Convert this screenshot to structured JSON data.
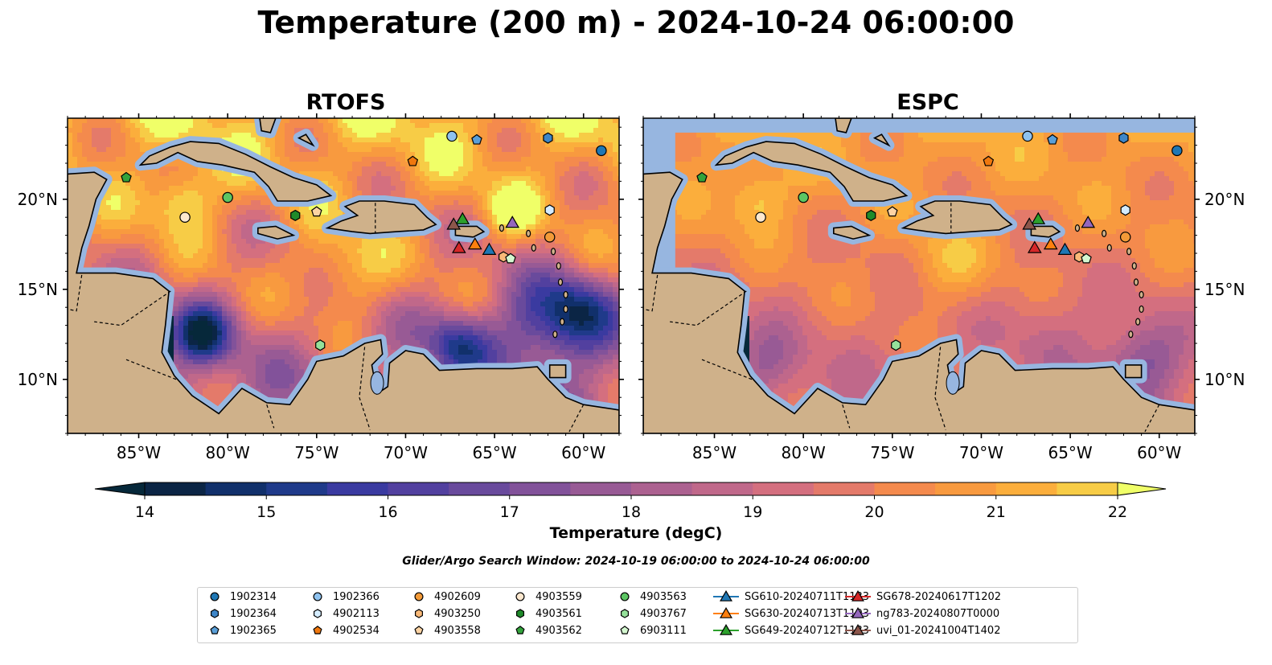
{
  "title": "Temperature (200 m) - 2024-10-24 06:00:00",
  "panels": [
    {
      "id": "rtofs",
      "title": "RTOFS"
    },
    {
      "id": "espc",
      "title": "ESPC"
    }
  ],
  "axes": {
    "lon_ticks": [
      -85,
      -80,
      -75,
      -70,
      -65,
      -60
    ],
    "lon_labels": [
      "85°W",
      "80°W",
      "75°W",
      "70°W",
      "65°W",
      "60°W"
    ],
    "lat_ticks": [
      10,
      15,
      20
    ],
    "lat_labels": [
      "10°N",
      "15°N",
      "20°N"
    ],
    "lon_range": [
      -89,
      -58
    ],
    "lat_range": [
      7,
      24.5
    ]
  },
  "colorbar": {
    "label": "Temperature (degC)",
    "min": 14,
    "max": 22,
    "step": 0.5,
    "tick_values": [
      14,
      15,
      16,
      17,
      18,
      19,
      20,
      21,
      22
    ],
    "tick_labels": [
      "14",
      "15",
      "16",
      "17",
      "18",
      "19",
      "20",
      "21",
      "22"
    ],
    "colors": [
      "#0b2545",
      "#11306b",
      "#1f3a8a",
      "#3a3aa0",
      "#52409f",
      "#694a9c",
      "#82529a",
      "#985a95",
      "#ac6190",
      "#c0688a",
      "#d46f7f",
      "#e47a6a",
      "#f48a4d",
      "#f89a3f",
      "#fbae3c",
      "#f7cc46",
      "#eceb5e"
    ],
    "under_color": "#06283a",
    "over_color": "#f0ff68"
  },
  "search_window": "Glider/Argo Search Window: 2024-10-19 06:00:00 to 2024-10-24 06:00:00",
  "colors": {
    "ocean_shelf": "#97b6e0",
    "land": "#cfb18a",
    "deep_blue": "#06283a"
  },
  "platforms": [
    {
      "id": "1902314",
      "marker": "circle",
      "color": "#1f77b4",
      "lon": -59,
      "lat": 22.7
    },
    {
      "id": "1902364",
      "marker": "hexagon",
      "color": "#3e86c8",
      "lon": -62,
      "lat": 23.4
    },
    {
      "id": "1902365",
      "marker": "pentagon",
      "color": "#5a9fd8",
      "lon": -66,
      "lat": 23.3
    },
    {
      "id": "1902366",
      "marker": "circle",
      "color": "#8ec2ef",
      "lon": -67.4,
      "lat": 23.5
    },
    {
      "id": "4902113",
      "marker": "hexagon",
      "color": "#d4ecff",
      "lon": -61.9,
      "lat": 19.4
    },
    {
      "id": "4902534",
      "marker": "pentagon",
      "color": "#f0780e",
      "lon": -69.6,
      "lat": 22.1
    },
    {
      "id": "4902609",
      "marker": "circle",
      "color": "#f39a38",
      "lon": -61.9,
      "lat": 17.9
    },
    {
      "id": "4903250",
      "marker": "hexagon",
      "color": "#f9b978",
      "lon": -64.5,
      "lat": 16.8
    },
    {
      "id": "4903558",
      "marker": "pentagon",
      "color": "#fcd3a3",
      "lon": -75,
      "lat": 19.3
    },
    {
      "id": "4903559",
      "marker": "circle",
      "color": "#fde8cf",
      "lon": -82.4,
      "lat": 19
    },
    {
      "id": "4903561",
      "marker": "hexagon",
      "color": "#1f8a2a",
      "lon": -76.2,
      "lat": 19.1
    },
    {
      "id": "4903562",
      "marker": "pentagon",
      "color": "#33a33c",
      "lon": -85.7,
      "lat": 21.2
    },
    {
      "id": "4903563",
      "marker": "circle",
      "color": "#5cc663",
      "lon": -80,
      "lat": 20.1
    },
    {
      "id": "4903767",
      "marker": "hexagon",
      "color": "#95e09a",
      "lon": -74.8,
      "lat": 11.9
    },
    {
      "id": "6903111",
      "marker": "pentagon",
      "color": "#d4f7d0",
      "lon": -64.1,
      "lat": 16.7
    }
  ],
  "gliders": [
    {
      "id": "SG610-20240711T1133",
      "color": "#1f77b4",
      "lon": -65.3,
      "lat": 17.2
    },
    {
      "id": "SG630-20240713T1103",
      "color": "#ff7f0e",
      "lon": -66.1,
      "lat": 17.5
    },
    {
      "id": "SG649-20240712T1133",
      "color": "#2ca02c",
      "lon": -66.8,
      "lat": 18.9
    },
    {
      "id": "SG678-20240617T1202",
      "color": "#d62728",
      "lon": -67,
      "lat": 17.3
    },
    {
      "id": "ng783-20240807T0000",
      "color": "#9467bd",
      "lon": -64,
      "lat": 18.7
    },
    {
      "id": "uvi_01-20241004T1402",
      "color": "#8c564b",
      "lon": -67.3,
      "lat": 18.6
    }
  ]
}
